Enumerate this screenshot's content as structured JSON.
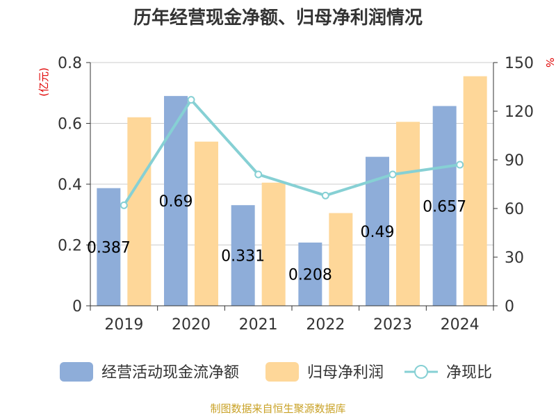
{
  "title": "历年经营现金净额、归母净利润情况",
  "source": "制图数据来自恒生聚源数据库",
  "colors": {
    "cashflow": "#8eadd9",
    "profit": "#fed799",
    "ratio": "#86d0d4",
    "unit": "#e00000",
    "source": "#c9a227"
  },
  "chart_data": {
    "type": "bar",
    "title": "历年经营现金净额、归母净利润情况",
    "categories": [
      "2019",
      "2020",
      "2021",
      "2022",
      "2023",
      "2024"
    ],
    "y_left": {
      "unit": "(亿元)",
      "range": [
        0,
        0.8
      ],
      "ticks": [
        "0",
        "0.2",
        "0.4",
        "0.6",
        "0.8"
      ]
    },
    "y_right": {
      "unit": "%",
      "range": [
        0,
        150
      ],
      "ticks": [
        "0",
        "30",
        "60",
        "90",
        "120",
        "150"
      ]
    },
    "series": [
      {
        "name": "经营活动现金流净额",
        "type": "bar",
        "axis": "left",
        "values": [
          0.387,
          0.69,
          0.331,
          0.208,
          0.49,
          0.657
        ],
        "labels": [
          "0.387",
          "0.69",
          "0.331",
          "0.208",
          "0.49",
          "0.657"
        ]
      },
      {
        "name": "归母净利润",
        "type": "bar",
        "axis": "left",
        "values": [
          0.62,
          0.54,
          0.405,
          0.305,
          0.605,
          0.755
        ]
      },
      {
        "name": "净现比",
        "type": "line",
        "axis": "right",
        "values": [
          62,
          127,
          81,
          68,
          81,
          87
        ]
      }
    ],
    "grid": true,
    "legend_position": "bottom"
  }
}
